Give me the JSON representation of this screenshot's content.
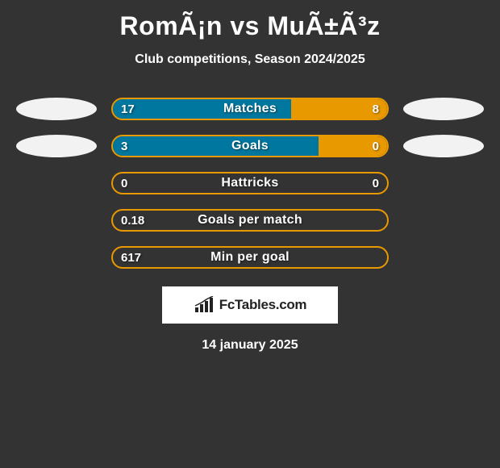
{
  "title": "RomÃ¡n vs MuÃ±Ã³z",
  "subtitle": "Club competitions, Season 2024/2025",
  "background_color": "#333333",
  "text_color": "#ffffff",
  "ellipse_color": "#f2f2f2",
  "logo_color": "#222222",
  "left_color": "#00779e",
  "right_color": "#e99900",
  "rows": [
    {
      "label": "Matches",
      "left_val": "17",
      "right_val": "8",
      "left_pct": 65,
      "right_pct": 35,
      "fill_left_color": "#00779e",
      "fill_right_color": "#e99900",
      "border_color": "#e99900",
      "show_ellipses": true,
      "show_right_val": true
    },
    {
      "label": "Goals",
      "left_val": "3",
      "right_val": "0",
      "left_pct": 75,
      "right_pct": 25,
      "fill_left_color": "#00779e",
      "fill_right_color": "#e99900",
      "border_color": "#e99900",
      "show_ellipses": true,
      "show_right_val": true
    },
    {
      "label": "Hattricks",
      "left_val": "0",
      "right_val": "0",
      "left_pct": 0,
      "right_pct": 0,
      "fill_left_color": "#00779e",
      "fill_right_color": "#e99900",
      "border_color": "#e99900",
      "show_ellipses": false,
      "show_right_val": true
    },
    {
      "label": "Goals per match",
      "left_val": "0.18",
      "right_val": "",
      "left_pct": 0,
      "right_pct": 0,
      "fill_left_color": "#00779e",
      "fill_right_color": "#e99900",
      "border_color": "#e99900",
      "show_ellipses": false,
      "show_right_val": false
    },
    {
      "label": "Min per goal",
      "left_val": "617",
      "right_val": "",
      "left_pct": 0,
      "right_pct": 0,
      "fill_left_color": "#00779e",
      "fill_right_color": "#e99900",
      "border_color": "#e99900",
      "show_ellipses": false,
      "show_right_val": false
    }
  ],
  "logo_text": "FcTables.com",
  "date": "14 january 2025"
}
